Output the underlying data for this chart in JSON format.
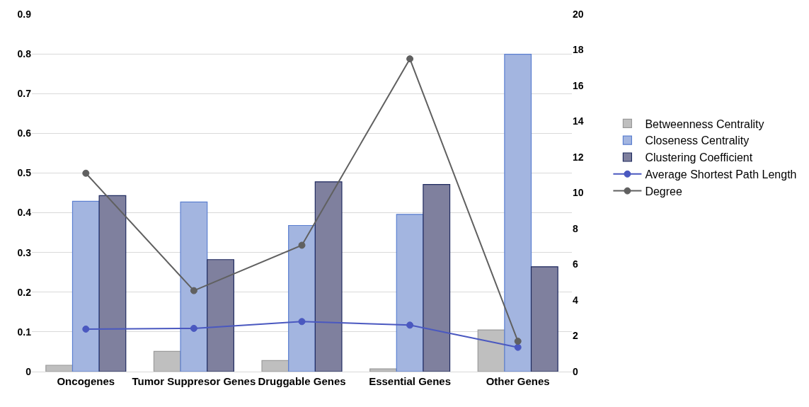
{
  "chart_data": {
    "type": "bar",
    "categories": [
      "Oncogenes",
      "Tumor Suppresor Genes",
      "Druggable Genes",
      "Essential Genes",
      "Other Genes"
    ],
    "series": [
      {
        "name": "Betweenness Centrality",
        "color": "#bfbfbf",
        "values": [
          0.016,
          0.051,
          0.028,
          0.007,
          0.105
        ]
      },
      {
        "name": "Closeness Centrality",
        "color": "#a3b5e0",
        "values": [
          0.429,
          0.427,
          0.368,
          0.396,
          0.799
        ]
      },
      {
        "name": "Clustering Coefficient",
        "color": "#7f809e",
        "values": [
          0.443,
          0.282,
          0.478,
          0.471,
          0.264
        ]
      },
      {
        "name": "Average Shortest Path Length",
        "type": "line",
        "axis": "y2",
        "color": "#4a58c0",
        "values": [
          2.38,
          2.42,
          2.8,
          2.6,
          1.36
        ]
      },
      {
        "name": "Degree",
        "type": "line",
        "axis": "y2",
        "color": "#606060",
        "values": [
          11.1,
          4.53,
          7.07,
          17.5,
          1.7
        ]
      }
    ],
    "ylim": [
      0,
      0.9
    ],
    "yticks": [
      0,
      0.1,
      0.2,
      0.3,
      0.4,
      0.5,
      0.6,
      0.7,
      0.8,
      0.9
    ],
    "y2lim": [
      0,
      20
    ],
    "y2ticks": [
      0,
      2,
      4,
      6,
      8,
      10,
      12,
      14,
      16,
      18,
      20
    ],
    "grid": "y",
    "legend": "right",
    "marker": "circle",
    "line_style": "solid"
  }
}
